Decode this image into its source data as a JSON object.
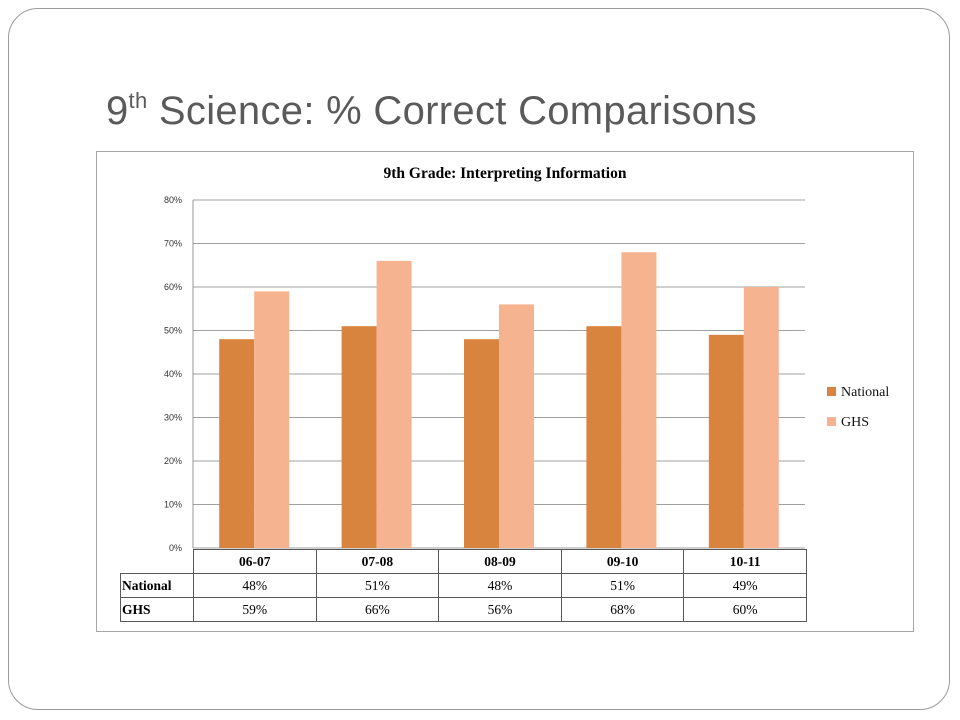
{
  "slide": {
    "title_prefix": "9",
    "title_sup": "th",
    "title_rest": " Science:  % Correct Comparisons"
  },
  "colors": {
    "national": "#D9843E",
    "ghs": "#F6B38F",
    "grid": "#808080",
    "title_text": "#5a5a5a"
  },
  "chart_data": {
    "type": "bar",
    "title": "9th Grade: Interpreting Information",
    "categories": [
      "06-07",
      "07-08",
      "08-09",
      "09-10",
      "10-11"
    ],
    "series": [
      {
        "name": "National",
        "values": [
          48,
          51,
          48,
          51,
          49
        ]
      },
      {
        "name": "GHS",
        "values": [
          59,
          66,
          56,
          68,
          60
        ]
      }
    ],
    "ylim": [
      0,
      80
    ],
    "ytick_labels": [
      "0%",
      "10%",
      "20%",
      "30%",
      "40%",
      "50%",
      "60%",
      "70%",
      "80%"
    ],
    "grid": true,
    "legend_position": "right",
    "data_table": {
      "rows": [
        {
          "label": "National",
          "cells": [
            "48%",
            "51%",
            "48%",
            "51%",
            "49%"
          ]
        },
        {
          "label": "GHS",
          "cells": [
            "59%",
            "66%",
            "56%",
            "68%",
            "60%"
          ]
        }
      ]
    }
  }
}
